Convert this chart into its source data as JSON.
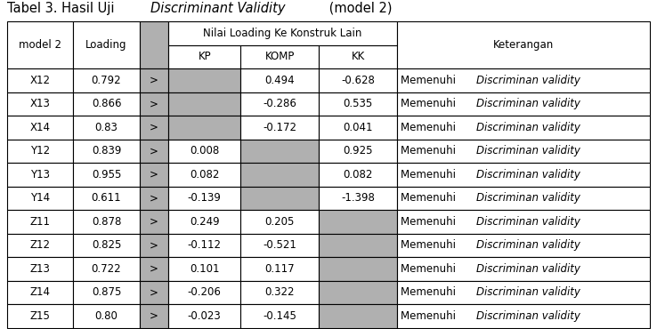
{
  "title_normal1": "Tabel 3. Hasil Uji ",
  "title_italic": "Discriminant Validity",
  "title_normal2": " (model 2)",
  "merged_header": "Nilai Loading Ke Konstruk Lain",
  "rows": [
    {
      "var": "X12",
      "loading": "0.792",
      "kp": "",
      "komp": "0.494",
      "kk": "-0.628"
    },
    {
      "var": "X13",
      "loading": "0.866",
      "kp": "",
      "komp": "-0.286",
      "kk": "0.535"
    },
    {
      "var": "X14",
      "loading": "0.83",
      "kp": "",
      "komp": "-0.172",
      "kk": "0.041"
    },
    {
      "var": "Y12",
      "loading": "0.839",
      "kp": "0.008",
      "komp": "",
      "kk": "0.925"
    },
    {
      "var": "Y13",
      "loading": "0.955",
      "kp": "0.082",
      "komp": "",
      "kk": "0.082"
    },
    {
      "var": "Y14",
      "loading": "0.611",
      "kp": "-0.139",
      "komp": "",
      "kk": "-1.398"
    },
    {
      "var": "Z11",
      "loading": "0.878",
      "kp": "0.249",
      "komp": "0.205",
      "kk": ""
    },
    {
      "var": "Z12",
      "loading": "0.825",
      "kp": "-0.112",
      "komp": "-0.521",
      "kk": ""
    },
    {
      "var": "Z13",
      "loading": "0.722",
      "kp": "0.101",
      "komp": "0.117",
      "kk": ""
    },
    {
      "var": "Z14",
      "loading": "0.875",
      "kp": "-0.206",
      "komp": "0.322",
      "kk": ""
    },
    {
      "var": "Z15",
      "loading": "0.80",
      "kp": "-0.023",
      "komp": "-0.145",
      "kk": ""
    }
  ],
  "shaded_color": "#b0b0b0",
  "title_fontsize": 10.5,
  "cell_fontsize": 8.5,
  "figsize": [
    7.38,
    3.7
  ],
  "dpi": 100
}
